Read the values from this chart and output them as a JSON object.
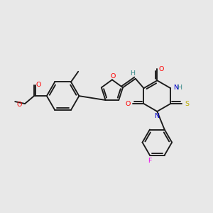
{
  "bg_color": "#e8e8e8",
  "bond_color": "#1a1a1a",
  "atom_colors": {
    "O": "#ff0000",
    "N": "#0000cc",
    "S": "#bbaa00",
    "F": "#ee00ee",
    "H": "#3a8a8a",
    "C": "#1a1a1a"
  },
  "lw": 1.35,
  "fs": 6.8
}
